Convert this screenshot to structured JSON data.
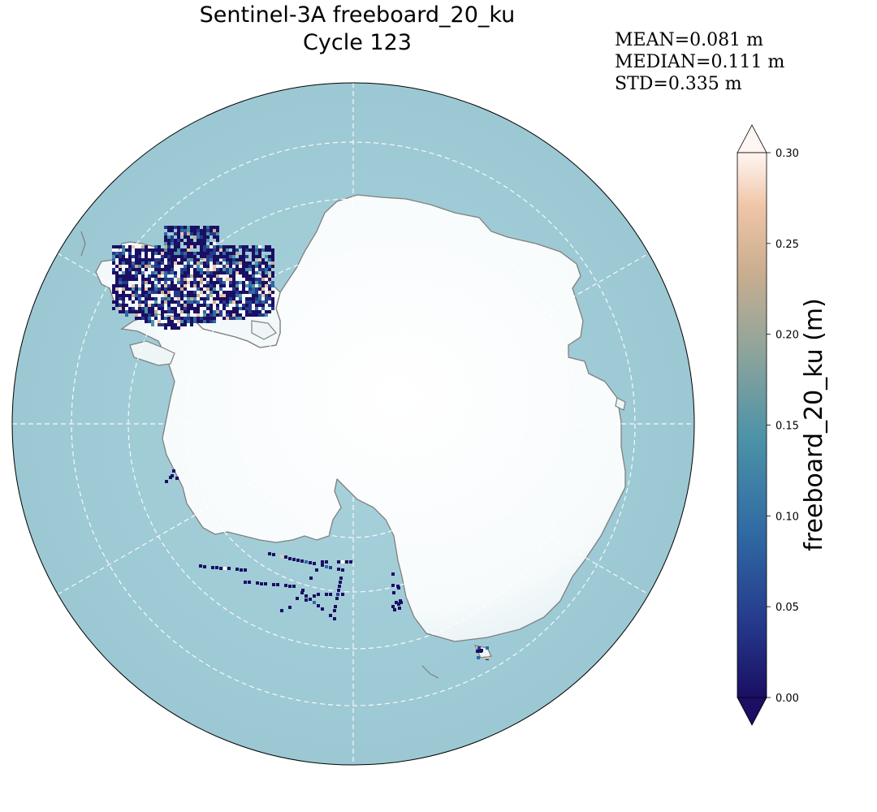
{
  "title": {
    "line1": "Sentinel-3A freeboard_20_ku",
    "line2": "Cycle 123"
  },
  "stats": {
    "mean": "MEAN=0.081 m",
    "median": "MEDIAN=0.111 m",
    "std": "STD=0.335 m"
  },
  "map": {
    "projection": "south-polar-stereographic",
    "ocean_color": "#9fccd6",
    "land_color": "#f8fbfc",
    "coastline_color": "#808080",
    "gridline_color": "#ffffff",
    "gridline_style": "dashed"
  },
  "colorbar": {
    "label": "freeboard_20_ku (m)",
    "min": 0.0,
    "max": 0.3,
    "extend": "both",
    "colormap": [
      "#1a0f63",
      "#263a8c",
      "#2f6aa3",
      "#4d93a8",
      "#8ca49b",
      "#c9ae8f",
      "#efc5a7",
      "#fff5f2"
    ],
    "ticks": [
      "0.00",
      "0.05",
      "0.10",
      "0.15",
      "0.20",
      "0.25",
      "0.30"
    ]
  }
}
